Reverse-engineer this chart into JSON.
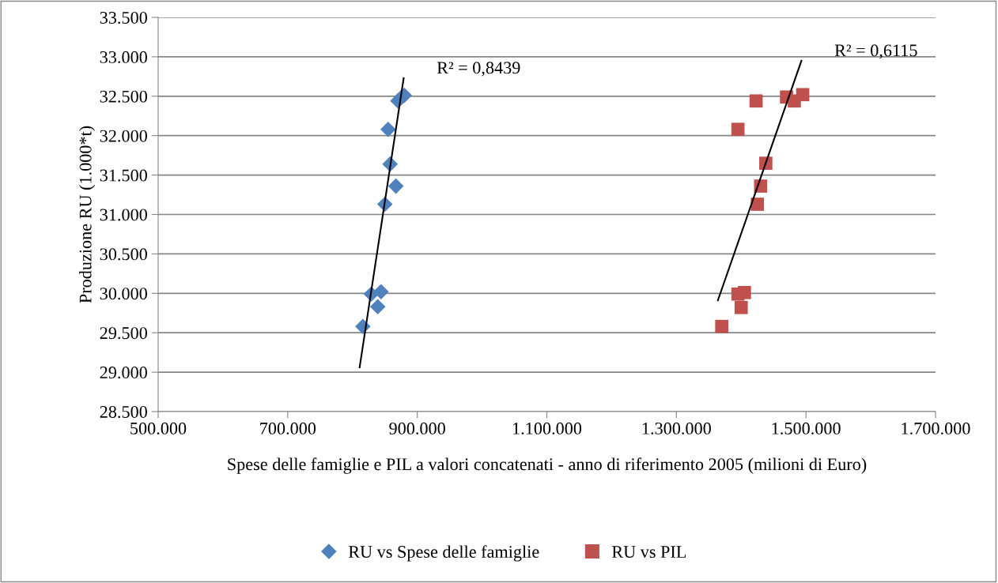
{
  "chart_data": {
    "type": "scatter",
    "xlabel": "Spese delle famiglie e PIL a valori concatenati - anno di riferimento 2005 (milioni di Euro)",
    "ylabel": "Produzione RU (1.000*t)",
    "xlim": [
      500000,
      1700000
    ],
    "xticks": [
      {
        "value": 500000,
        "label": "500.000"
      },
      {
        "value": 700000,
        "label": "700.000"
      },
      {
        "value": 900000,
        "label": "900.000"
      },
      {
        "value": 1100000,
        "label": "1.100.000"
      },
      {
        "value": 1300000,
        "label": "1.300.000"
      },
      {
        "value": 1500000,
        "label": "1.500.000"
      },
      {
        "value": 1700000,
        "label": "1.700.000"
      }
    ],
    "ylim": [
      28500,
      33500
    ],
    "yticks": [
      {
        "value": 28500,
        "label": "28.500"
      },
      {
        "value": 29000,
        "label": "29.000"
      },
      {
        "value": 29500,
        "label": "29.500"
      },
      {
        "value": 30000,
        "label": "30.000"
      },
      {
        "value": 30500,
        "label": "30.500"
      },
      {
        "value": 31000,
        "label": "31.000"
      },
      {
        "value": 31500,
        "label": "31.500"
      },
      {
        "value": 32000,
        "label": "32.000"
      },
      {
        "value": 32500,
        "label": "32.500"
      },
      {
        "value": 33000,
        "label": "33.000"
      },
      {
        "value": 33500,
        "label": "33.500"
      }
    ],
    "grid": "y",
    "legend": "bottom",
    "series": [
      {
        "name": "RU vs Spese delle famiglie",
        "color": "#4f81bd",
        "marker": "diamond",
        "x": [
          816000,
          839000,
          829000,
          844000,
          850000,
          867000,
          858000,
          855000,
          870000,
          876000,
          880000
        ],
        "values": [
          29580,
          29830,
          29990,
          30020,
          31130,
          31360,
          31640,
          32080,
          32440,
          32490,
          32510
        ]
      },
      {
        "name": "RU vs PIL",
        "color": "#c0504d",
        "marker": "square",
        "x": [
          1370000,
          1400000,
          1395000,
          1405000,
          1425000,
          1430000,
          1438000,
          1395000,
          1423000,
          1470000,
          1482000,
          1495000
        ],
        "values": [
          29580,
          29820,
          29990,
          30010,
          31130,
          31360,
          31650,
          32080,
          32440,
          32490,
          32440,
          32520
        ]
      },
      {
        "type": "line",
        "color": "#000000",
        "marker": "none",
        "x": [
          811000,
          879000
        ],
        "values": [
          29060,
          32730
        ]
      },
      {
        "type": "line",
        "color": "#000000",
        "marker": "none",
        "x": [
          1364000,
          1493000
        ],
        "values": [
          29910,
          32950
        ]
      }
    ],
    "annotations": [
      "R² = 0,8439",
      "R² = 0,6115"
    ]
  }
}
